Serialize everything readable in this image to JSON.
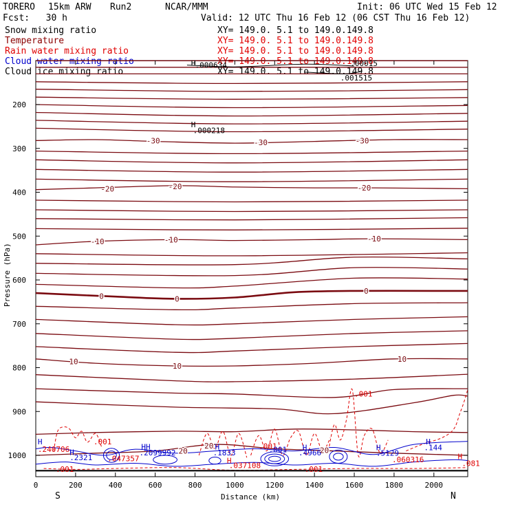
{
  "header": {
    "model": "TORERO",
    "resolution": "15km ARW",
    "run": "Run2",
    "org": "NCAR/MMM",
    "init": "Init: 06 UTC Wed 15 Feb 12",
    "fcst": "Fcst:   30 h",
    "valid": "Valid: 12 UTC Thu 16 Feb 12 (06 CST Thu 16 Feb 12)"
  },
  "fields": [
    {
      "name": "Snow mixing ratio",
      "color": "#000000",
      "xy": "XY= 149.0.  5.1 to 149.0.149.8"
    },
    {
      "name": "Temperature",
      "color": "#8b0000",
      "xy": "XY= 149.0.  5.1 to 149.0.149.8"
    },
    {
      "name": "Rain water mixing ratio",
      "color": "#e00000",
      "xy": "XY= 149.0.  5.1 to 149.0.149.8"
    },
    {
      "name": "Cloud water mixing ratio",
      "color": "#0000cc",
      "xy": "XY= 149.0.  5.1 to 149.0.149.8"
    },
    {
      "name": "Cloud ice mixing ratio",
      "color": "#000000",
      "xy": "XY= 149.0.  5.1 to 149.0.149.8"
    }
  ],
  "chart_data": {
    "type": "cross-section contour",
    "xlabel": "Distance (km)",
    "ylabel": "Pressure (hPa)",
    "xlim": [
      0,
      2170
    ],
    "ylim": [
      1050,
      100
    ],
    "x_ticks": [
      0,
      200,
      400,
      600,
      800,
      1000,
      1200,
      1400,
      1600,
      1800,
      2000
    ],
    "y_ticks": [
      200,
      300,
      400,
      500,
      600,
      700,
      800,
      900,
      1000
    ],
    "direction_labels": [
      "S",
      "N"
    ],
    "temperature_levels": [
      -50,
      -48,
      -46,
      -44,
      -42,
      -40,
      -38,
      -36,
      -34,
      -32,
      -30,
      -28,
      -26,
      -24,
      -22,
      -20,
      -18,
      -16,
      -14,
      -12,
      -10,
      -8,
      -6,
      -4,
      -2,
      0,
      2,
      4,
      6,
      8,
      10,
      12,
      14,
      16,
      18,
      20
    ],
    "temperature_contours": [
      {
        "level": -50,
        "x": [
          0,
          1000,
          2170
        ],
        "p": [
          100,
          100,
          100
        ]
      },
      {
        "level": -48,
        "x": [
          0,
          1000,
          2170
        ],
        "p": [
          115,
          115,
          115
        ]
      },
      {
        "level": -46,
        "x": [
          0,
          1000,
          2170
        ],
        "p": [
          130,
          130,
          130
        ]
      },
      {
        "level": -44,
        "x": [
          0,
          1000,
          2170
        ],
        "p": [
          148,
          152,
          148
        ]
      },
      {
        "level": -42,
        "x": [
          0,
          1000,
          2170
        ],
        "p": [
          165,
          170,
          166
        ]
      },
      {
        "level": -40,
        "x": [
          0,
          1000,
          2170
        ],
        "p": [
          183,
          188,
          184
        ]
      },
      {
        "level": -38,
        "x": [
          0,
          1000,
          2170
        ],
        "p": [
          200,
          207,
          202
        ]
      },
      {
        "level": -36,
        "x": [
          0,
          1000,
          2170
        ],
        "p": [
          218,
          226,
          220
        ]
      },
      {
        "level": -34,
        "x": [
          0,
          1000,
          2170
        ],
        "p": [
          236,
          244,
          238
        ]
      },
      {
        "level": -32,
        "x": [
          0,
          1000,
          2170
        ],
        "p": [
          254,
          262,
          256
        ]
      },
      {
        "level": -30,
        "x": [
          0,
          300,
          600,
          1000,
          1400,
          1800,
          2170
        ],
        "p": [
          282,
          280,
          284,
          288,
          284,
          280,
          280
        ]
      },
      {
        "level": -28,
        "x": [
          0,
          1000,
          2170
        ],
        "p": [
          306,
          312,
          306
        ]
      },
      {
        "level": -26,
        "x": [
          0,
          1000,
          2170
        ],
        "p": [
          326,
          333,
          326
        ]
      },
      {
        "level": -24,
        "x": [
          0,
          1000,
          2170
        ],
        "p": [
          348,
          354,
          348
        ]
      },
      {
        "level": -22,
        "x": [
          0,
          1000,
          2170
        ],
        "p": [
          370,
          376,
          370
        ]
      },
      {
        "level": -20,
        "x": [
          0,
          300,
          700,
          1000,
          1400,
          1700,
          2170
        ],
        "p": [
          394,
          390,
          385,
          388,
          390,
          390,
          392
        ]
      },
      {
        "level": -18,
        "x": [
          0,
          1000,
          2170
        ],
        "p": [
          418,
          422,
          418
        ]
      },
      {
        "level": -16,
        "x": [
          0,
          1000,
          2170
        ],
        "p": [
          440,
          444,
          440
        ]
      },
      {
        "level": -14,
        "x": [
          0,
          1000,
          2170
        ],
        "p": [
          460,
          463,
          458
        ]
      },
      {
        "level": -12,
        "x": [
          0,
          1000,
          2170
        ],
        "p": [
          483,
          486,
          482
        ]
      },
      {
        "level": -10,
        "x": [
          0,
          300,
          700,
          1000,
          1400,
          1700,
          2170
        ],
        "p": [
          520,
          512,
          508,
          510,
          508,
          506,
          508
        ]
      },
      {
        "level": -8,
        "x": [
          0,
          1000,
          2170
        ],
        "p": [
          540,
          545,
          538
        ]
      },
      {
        "level": -6,
        "x": [
          0,
          1000,
          1600,
          2170
        ],
        "p": [
          562,
          565,
          548,
          552
        ]
      },
      {
        "level": -4,
        "x": [
          0,
          1000,
          1600,
          2170
        ],
        "p": [
          585,
          590,
          572,
          575
        ]
      },
      {
        "level": -2,
        "x": [
          0,
          700,
          1000,
          1600,
          2170
        ],
        "p": [
          610,
          618,
          614,
          596,
          598
        ]
      },
      {
        "level": 0,
        "x": [
          0,
          400,
          700,
          1000,
          1300,
          1600,
          2000,
          2170
        ],
        "p": [
          630,
          638,
          643,
          640,
          628,
          625,
          625,
          625
        ]
      },
      {
        "level": 2,
        "x": [
          0,
          700,
          1000,
          1600,
          2170
        ],
        "p": [
          660,
          668,
          664,
          654,
          652
        ]
      },
      {
        "level": 4,
        "x": [
          0,
          700,
          1000,
          1600,
          2170
        ],
        "p": [
          690,
          702,
          700,
          690,
          684
        ]
      },
      {
        "level": 6,
        "x": [
          0,
          700,
          1000,
          1600,
          2170
        ],
        "p": [
          722,
          735,
          733,
          722,
          716
        ]
      },
      {
        "level": 8,
        "x": [
          0,
          700,
          1000,
          1600,
          2170
        ],
        "p": [
          752,
          765,
          762,
          752,
          745
        ]
      },
      {
        "level": 10,
        "x": [
          0,
          300,
          700,
          1000,
          1400,
          1800,
          2170
        ],
        "p": [
          780,
          790,
          796,
          796,
          790,
          780,
          780
        ]
      },
      {
        "level": 12,
        "x": [
          0,
          700,
          1000,
          1600,
          2170
        ],
        "p": [
          816,
          830,
          832,
          826,
          815
        ]
      },
      {
        "level": 14,
        "x": [
          0,
          700,
          1000,
          1500,
          1800,
          2170
        ],
        "p": [
          848,
          858,
          860,
          868,
          850,
          848
        ]
      },
      {
        "level": 16,
        "x": [
          0,
          700,
          1200,
          1500,
          1900,
          2100,
          2170
        ],
        "p": [
          878,
          890,
          894,
          905,
          880,
          863,
          865
        ]
      },
      {
        "level": 18,
        "x": [
          0,
          300,
          700,
          1000,
          1300,
          1600,
          1900,
          2170
        ],
        "p": [
          952,
          948,
          945,
          946,
          940,
          942,
          946,
          948
        ]
      },
      {
        "level": 20,
        "x": [
          0,
          300,
          600,
          900,
          1200,
          1500,
          1800,
          2170
        ],
        "p": [
          1000,
          995,
          990,
          975,
          985,
          990,
          995,
          1000
        ]
      }
    ],
    "temperature_labels": [
      {
        "text": "-30",
        "x": 590,
        "p": 282
      },
      {
        "text": "-30",
        "x": 1130,
        "p": 286
      },
      {
        "text": "-30",
        "x": 1640,
        "p": 282
      },
      {
        "text": "-20",
        "x": 360,
        "p": 392
      },
      {
        "text": "-20",
        "x": 700,
        "p": 387
      },
      {
        "text": "-20",
        "x": 1650,
        "p": 390
      },
      {
        "text": "-10",
        "x": 310,
        "p": 512
      },
      {
        "text": "-10",
        "x": 680,
        "p": 508
      },
      {
        "text": "-10",
        "x": 1700,
        "p": 506
      },
      {
        "text": "0",
        "x": 330,
        "p": 637
      },
      {
        "text": "0",
        "x": 710,
        "p": 643
      },
      {
        "text": "0",
        "x": 1660,
        "p": 625
      },
      {
        "text": "10",
        "x": 190,
        "p": 786
      },
      {
        "text": "10",
        "x": 710,
        "p": 796
      },
      {
        "text": "10",
        "x": 1840,
        "p": 780
      },
      {
        "text": "20",
        "x": 740,
        "p": 990
      },
      {
        "text": "20",
        "x": 870,
        "p": 978
      },
      {
        "text": "20",
        "x": 1450,
        "p": 988
      }
    ],
    "snow_annotations": [
      {
        "text": "H",
        "x": 780,
        "p": 111
      },
      {
        "text": ".000634",
        "x": 800,
        "p": 116
      },
      {
        "text": ".00015",
        "x": 1580,
        "p": 112
      },
      {
        "text": ".001515",
        "x": 1530,
        "p": 145
      },
      {
        "text": "H",
        "x": 780,
        "p": 252
      },
      {
        "text": ".000218",
        "x": 790,
        "p": 265
      }
    ],
    "snow_lines": [
      {
        "x": [
          760,
          1000,
          1350,
          1600
        ],
        "p": [
          110,
          114,
          108,
          112
        ]
      },
      {
        "x": [
          1350,
          1550,
          1640
        ],
        "p": [
          126,
          130,
          124
        ]
      }
    ],
    "rain_annotations": [
      {
        "text": ".001",
        "x": 290,
        "p": 975
      },
      {
        "text": ".001",
        "x": 1120,
        "p": 985
      },
      {
        "text": ".001",
        "x": 1600,
        "p": 866
      },
      {
        "text": ".240706",
        "x": 10,
        "p": 992
      },
      {
        "text": ".047357",
        "x": 360,
        "p": 1013
      },
      {
        "text": ".037108",
        "x": 970,
        "p": 1029
      },
      {
        "text": ".060316",
        "x": 1790,
        "p": 1016
      },
      {
        "text": ".081",
        "x": 2140,
        "p": 1024
      },
      {
        "text": ".001",
        "x": 100,
        "p": 1038
      },
      {
        "text": ".001",
        "x": 1350,
        "p": 1038
      },
      {
        "text": "H",
        "x": 960,
        "p": 1018
      },
      {
        "text": "H",
        "x": 2120,
        "p": 1009
      }
    ],
    "rain_lines": [
      {
        "x": [
          90,
          110,
          140,
          170,
          200,
          230,
          260,
          300,
          330
        ],
        "p": [
          990,
          945,
          935,
          940,
          960,
          945,
          970,
          950,
          980
        ]
      },
      {
        "x": [
          820,
          860,
          900,
          940,
          980,
          1020,
          1060
        ],
        "p": [
          1000,
          950,
          985,
          945,
          1000,
          950,
          1005
        ]
      },
      {
        "x": [
          1080,
          1120,
          1160,
          1200,
          1240,
          1280,
          1320,
          1360,
          1400,
          1440,
          1480
        ],
        "p": [
          1000,
          955,
          990,
          940,
          1000,
          960,
          945,
          1000,
          950,
          990,
          960
        ]
      },
      {
        "x": [
          1470,
          1500,
          1530,
          1560,
          1590,
          1620,
          1650,
          1690,
          1730,
          1770
        ],
        "p": [
          990,
          930,
          965,
          920,
          850,
          1000,
          955,
          940,
          995,
          965
        ]
      },
      {
        "x": [
          1860,
          1940,
          2040,
          2100,
          2130,
          2150,
          2170
        ],
        "p": [
          990,
          975,
          960,
          940,
          905,
          880,
          850
        ]
      },
      {
        "x": [
          40,
          200,
          400,
          700,
          1000,
          1300,
          1600,
          1900,
          2170
        ],
        "p": [
          1030,
          1032,
          1030,
          1028,
          1034,
          1032,
          1030,
          1030,
          1028
        ]
      }
    ],
    "cloudwater_annotations": [
      {
        "text": "H",
        "x": 10,
        "p": 975
      },
      {
        "text": "H",
        "x": 170,
        "p": 999
      },
      {
        "text": ".2321",
        "x": 170,
        "p": 1011
      },
      {
        "text": "HH",
        "x": 530,
        "p": 987
      },
      {
        "text": ".2099992",
        "x": 520,
        "p": 1000
      },
      {
        "text": "H",
        "x": 900,
        "p": 987
      },
      {
        "text": ".1833",
        "x": 890,
        "p": 1000
      },
      {
        "text": ".001",
        "x": 1170,
        "p": 993
      },
      {
        "text": "H",
        "x": 1340,
        "p": 988
      },
      {
        "text": ".4966",
        "x": 1320,
        "p": 1000
      },
      {
        "text": ".5129",
        "x": 1710,
        "p": 1001
      },
      {
        "text": "H",
        "x": 1960,
        "p": 975
      },
      {
        "text": ".144",
        "x": 1950,
        "p": 988
      },
      {
        "text": "H",
        "x": 1710,
        "p": 988
      }
    ],
    "cloudwater_lines": [
      {
        "x": [
          0,
          80,
          200,
          350,
          500,
          700,
          900,
          1100,
          1300,
          1500,
          1700,
          1900,
          2170
        ],
        "p": [
          985,
          982,
          990,
          1000,
          986,
          995,
          990,
          985,
          990,
          982,
          998,
          975,
          968
        ]
      },
      {
        "x": [
          0,
          150,
          300,
          500,
          700,
          900,
          1100,
          1300,
          1500,
          1700,
          1900,
          2100,
          2170
        ],
        "p": [
          1020,
          1015,
          1022,
          1018,
          1025,
          1020,
          1016,
          1022,
          1018,
          1025,
          1015,
          1010,
          1012
        ]
      }
    ],
    "cloudwater_loops": [
      {
        "x": 380,
        "p": 1000,
        "rx": 40,
        "rp": 16
      },
      {
        "x": 380,
        "p": 1000,
        "rx": 25,
        "rp": 10
      },
      {
        "x": 1200,
        "p": 1008,
        "rx": 70,
        "rp": 16
      },
      {
        "x": 1200,
        "p": 1008,
        "rx": 50,
        "rp": 11
      },
      {
        "x": 1200,
        "p": 1008,
        "rx": 30,
        "rp": 6
      },
      {
        "x": 1520,
        "p": 1003,
        "rx": 45,
        "rp": 15
      },
      {
        "x": 1520,
        "p": 1003,
        "rx": 25,
        "rp": 8
      },
      {
        "x": 650,
        "p": 1010,
        "rx": 60,
        "rp": 10
      },
      {
        "x": 900,
        "p": 1012,
        "rx": 30,
        "rp": 8
      }
    ],
    "ground_pressure": 1035
  }
}
